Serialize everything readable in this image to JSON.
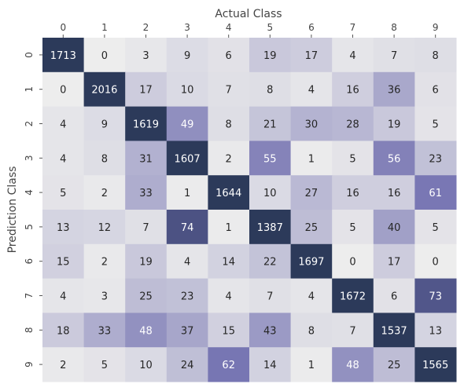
{
  "chart_data": {
    "type": "heatmap",
    "title": "",
    "xlabel": "Actual Class",
    "ylabel": "Prediction Class",
    "x_categories": [
      "0",
      "1",
      "2",
      "3",
      "4",
      "5",
      "6",
      "7",
      "8",
      "9"
    ],
    "y_categories": [
      "0",
      "1",
      "2",
      "3",
      "4",
      "5",
      "6",
      "7",
      "8",
      "9"
    ],
    "values": [
      [
        1713,
        0,
        3,
        9,
        6,
        19,
        17,
        4,
        7,
        8
      ],
      [
        0,
        2016,
        17,
        10,
        7,
        8,
        4,
        16,
        36,
        6
      ],
      [
        4,
        9,
        1619,
        49,
        8,
        21,
        30,
        28,
        19,
        5
      ],
      [
        4,
        8,
        31,
        1607,
        2,
        55,
        1,
        5,
        56,
        23
      ],
      [
        5,
        2,
        33,
        1,
        1644,
        10,
        27,
        16,
        16,
        61
      ],
      [
        13,
        12,
        7,
        74,
        1,
        1387,
        25,
        5,
        40,
        5
      ],
      [
        15,
        2,
        19,
        4,
        14,
        22,
        1697,
        0,
        17,
        0
      ],
      [
        4,
        3,
        25,
        23,
        4,
        7,
        4,
        1672,
        6,
        73
      ],
      [
        18,
        33,
        48,
        37,
        15,
        43,
        8,
        7,
        1537,
        13
      ],
      [
        2,
        5,
        10,
        24,
        62,
        14,
        1,
        48,
        25,
        1565
      ]
    ],
    "colorbar": false,
    "colors": {
      "light": "#ededed",
      "mid": "#6c6aad",
      "dark": "#2c3a5a",
      "text_dark": "#262626",
      "text_light": "#ffffff"
    }
  }
}
